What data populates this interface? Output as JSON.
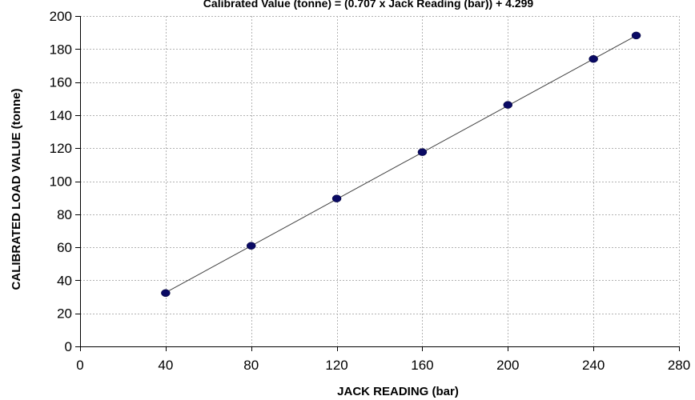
{
  "chart_data": {
    "type": "scatter",
    "title": "Calibrated Value (tonne) = (0.707 x Jack Reading (bar)) + 4.299",
    "xlabel": "JACK READING (bar)",
    "ylabel": "CALIBRATED LOAD VALUE  (tonne)",
    "xlim": [
      0,
      280
    ],
    "ylim": [
      0,
      200
    ],
    "x_ticks": [
      0,
      40,
      80,
      120,
      160,
      200,
      240,
      280
    ],
    "y_ticks": [
      0,
      20,
      40,
      60,
      80,
      100,
      120,
      140,
      160,
      180,
      200
    ],
    "grid": true,
    "trendline": {
      "slope": 0.707,
      "intercept": 4.299,
      "color": "#404040"
    },
    "series": [
      {
        "color": "#0a0a64",
        "points": [
          {
            "x": 40,
            "y": 32.3
          },
          {
            "x": 80,
            "y": 60.9
          },
          {
            "x": 120,
            "y": 89.5
          },
          {
            "x": 160,
            "y": 117.6
          },
          {
            "x": 200,
            "y": 146.2
          },
          {
            "x": 240,
            "y": 174.0
          },
          {
            "x": 260,
            "y": 188.2
          }
        ]
      }
    ]
  }
}
